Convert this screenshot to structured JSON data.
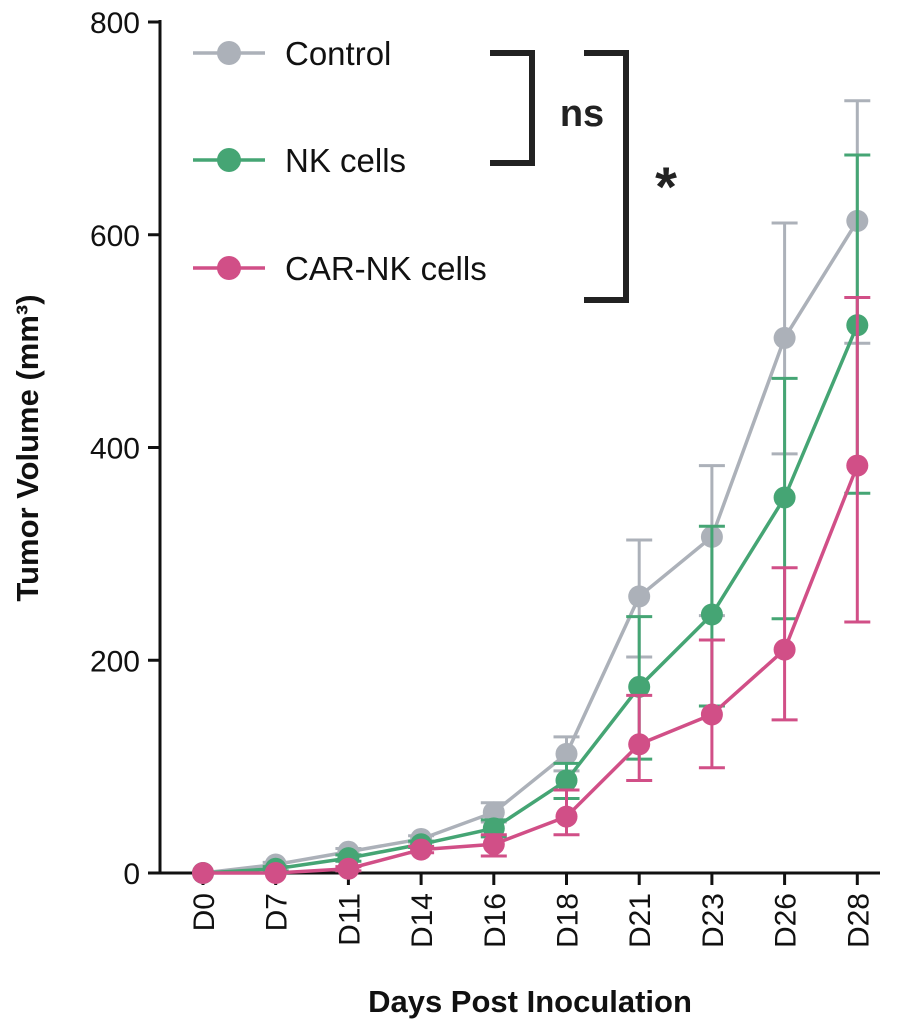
{
  "chart_data": {
    "type": "line",
    "title": "",
    "xlabel": "Days Post Inoculation",
    "ylabel": "Tumor Volume (mm³)",
    "categories": [
      "D0",
      "D7",
      "D11",
      "D14",
      "D16",
      "D18",
      "D21",
      "D23",
      "D26",
      "D28"
    ],
    "ylim": [
      0,
      800
    ],
    "yticks": [
      0,
      200,
      400,
      600,
      800
    ],
    "grid": false,
    "legend_position": "top-left",
    "series": [
      {
        "name": "Control",
        "color": "#acb1b9",
        "values": [
          0,
          8,
          20,
          32,
          57,
          112,
          260,
          316,
          503,
          613
        ],
        "err_upper": [
          0,
          10,
          23,
          35,
          66,
          128,
          313,
          383,
          611,
          726
        ],
        "err_lower": [
          0,
          6,
          17,
          29,
          48,
          96,
          203,
          242,
          394,
          498
        ]
      },
      {
        "name": "NK cells",
        "color": "#45a574",
        "values": [
          0,
          4,
          14,
          27,
          42,
          87,
          175,
          243,
          353,
          515
        ],
        "err_upper": [
          0,
          6,
          17,
          30,
          50,
          103,
          241,
          326,
          465,
          675
        ],
        "err_lower": [
          0,
          2,
          11,
          24,
          34,
          70,
          107,
          157,
          239,
          357
        ]
      },
      {
        "name": "CAR-NK cells",
        "color": "#d14f87",
        "values": [
          0,
          0,
          4,
          22,
          27,
          53,
          121,
          149,
          210,
          383
        ],
        "err_upper": [
          0,
          1,
          6,
          25,
          36,
          78,
          167,
          219,
          287,
          541
        ],
        "err_lower": [
          0,
          0,
          2,
          19,
          16,
          36,
          87,
          99,
          144,
          236
        ]
      }
    ],
    "annotations": [
      {
        "text": "ns",
        "between": [
          "Control",
          "NK cells"
        ]
      },
      {
        "text": "*",
        "between": [
          "Control",
          "CAR-NK cells"
        ]
      }
    ]
  }
}
